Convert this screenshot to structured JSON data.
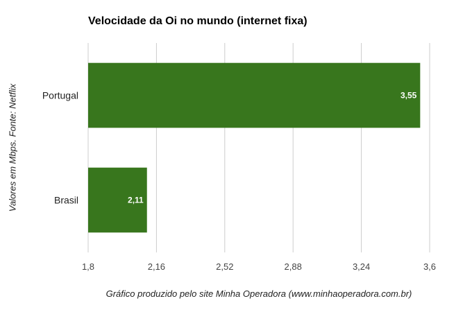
{
  "chart_data": {
    "type": "bar",
    "orientation": "horizontal",
    "title": "Velocidade da Oi no mundo (internet fixa)",
    "xlabel": "Gráfico produzido pelo site Minha Operadora (www.minhaoperadora.com.br)",
    "ylabel": "Valores em Mbps. Fonte: Netflix",
    "categories": [
      "Portugal",
      "Brasil"
    ],
    "values": [
      3.55,
      2.11
    ],
    "value_labels": [
      "3,55",
      "2,11"
    ],
    "xlim": [
      1.8,
      3.6
    ],
    "xticks": [
      1.8,
      2.16,
      2.52,
      2.88,
      3.24,
      3.6
    ],
    "xtick_labels": [
      "1,8",
      "2,16",
      "2,52",
      "2,88",
      "3,24",
      "3,6"
    ],
    "grid": true,
    "bar_color": "#38761d"
  }
}
